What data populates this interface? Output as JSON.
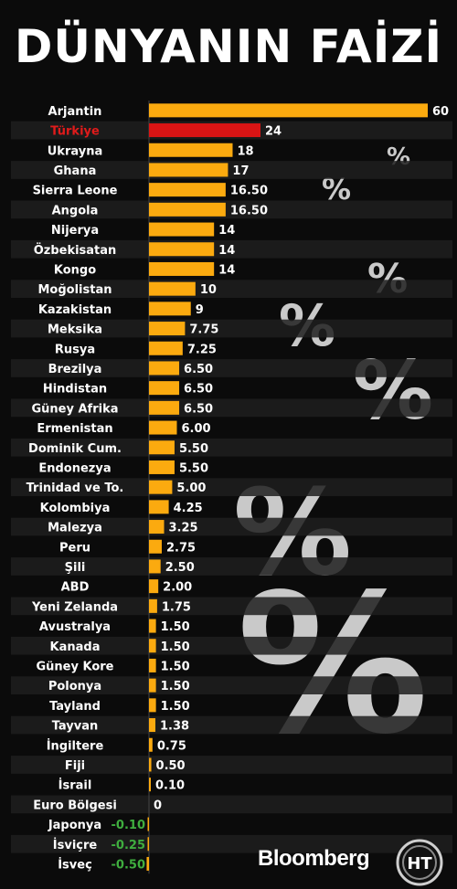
{
  "title": "DÜNYANIN FAİZİ",
  "brand": "Bloomberg",
  "logo_text": "HT",
  "watermark_symbol": "%",
  "colors": {
    "background": "#0b0b0b",
    "bar": "#fbaa0f",
    "highlight_bar": "#d91414",
    "highlight_label": "#e01b1b",
    "negative_value": "#3fae3f",
    "label": "#ffffff",
    "row_alt": "#1f1f1f"
  },
  "chart_data": {
    "type": "bar",
    "orientation": "horizontal",
    "title": "DÜNYANIN FAİZİ",
    "highlight": "Türkiye",
    "categories": [
      "Arjantin",
      "Türkiye",
      "Ukrayna",
      "Ghana",
      "Sierra Leone",
      "Angola",
      "Nijerya",
      "Özbekisatan",
      "Kongo",
      "Moğolistan",
      "Kazakistan",
      "Meksika",
      "Rusya",
      "Brezilya",
      "Hindistan",
      "Güney Afrika",
      "Ermenistan",
      "Dominik Cum.",
      "Endonezya",
      "Trinidad ve To.",
      "Kolombiya",
      "Malezya",
      "Peru",
      "Şili",
      "ABD",
      "Yeni Zelanda",
      "Avustralya",
      "Kanada",
      "Güney Kore",
      "Polonya",
      "Tayland",
      "Tayvan",
      "İngiltere",
      "Fiji",
      "İsrail",
      "Euro Bölgesi",
      "Japonya",
      "İsviçre",
      "İsveç"
    ],
    "values": [
      60,
      24,
      18,
      17,
      16.5,
      16.5,
      14,
      14,
      14,
      10,
      9,
      7.75,
      7.25,
      6.5,
      6.5,
      6.5,
      6,
      5.5,
      5.5,
      5,
      4.25,
      3.25,
      2.75,
      2.5,
      2,
      1.75,
      1.5,
      1.5,
      1.5,
      1.5,
      1.5,
      1.38,
      0.75,
      0.5,
      0.1,
      0,
      -0.1,
      -0.25,
      -0.5
    ],
    "value_labels": [
      "60",
      "24",
      "18",
      "17",
      "16.50",
      "16.50",
      "14",
      "14",
      "14",
      "10",
      "9",
      "7.75",
      "7.25",
      "6.50",
      "6.50",
      "6.50",
      "6.00",
      "5.50",
      "5.50",
      "5.00",
      "4.25",
      "3.25",
      "2.75",
      "2.50",
      "2.00",
      "1.75",
      "1.50",
      "1.50",
      "1.50",
      "1.50",
      "1.50",
      "1.38",
      "0.75",
      "0.50",
      "0.10",
      "0",
      "-0.10",
      "-0.25",
      "-0.50"
    ],
    "xlim": [
      -0.5,
      60
    ]
  }
}
